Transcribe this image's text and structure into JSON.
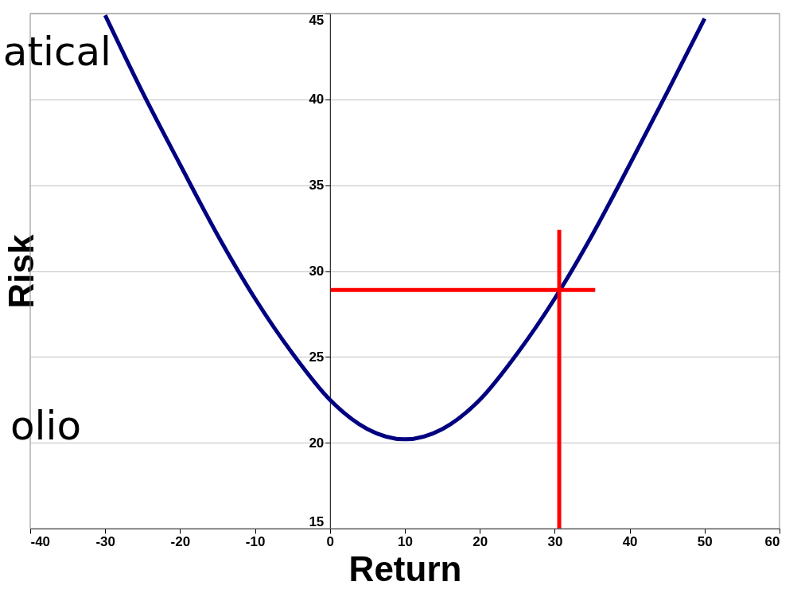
{
  "chart_data": {
    "type": "line",
    "xlabel": "Return",
    "ylabel": "Risk",
    "annotations": [
      "atical",
      "olio"
    ],
    "x": [
      -30,
      -25,
      -20,
      -15,
      -10,
      -5,
      0,
      5,
      10,
      15,
      20,
      25,
      30,
      35,
      40,
      45,
      50
    ],
    "series": [
      {
        "color": "#000080",
        "values": [
          44.9,
          40.4,
          36.2,
          32.1,
          28.4,
          25.2,
          22.5,
          20.8,
          20.2,
          20.8,
          22.5,
          25.2,
          28.4,
          32.1,
          36.2,
          40.4,
          44.7
        ]
      },
      {
        "color": "#ff0000",
        "x": [
          0.1,
          35.4
        ],
        "values": [
          28.9,
          28.9
        ]
      },
      {
        "color": "#ff0000",
        "x": [
          30.6,
          30.6
        ],
        "values": [
          32.4,
          15
        ]
      }
    ],
    "xlim": [
      -40,
      60
    ],
    "xticks": [
      -40,
      -30,
      -20,
      -10,
      0,
      10,
      20,
      30,
      40,
      50,
      60
    ],
    "ylim": [
      15,
      45
    ],
    "yticks": [
      15,
      20,
      25,
      30,
      35,
      40,
      45
    ],
    "grid": "y",
    "marker": "none",
    "line_style": "solid"
  }
}
